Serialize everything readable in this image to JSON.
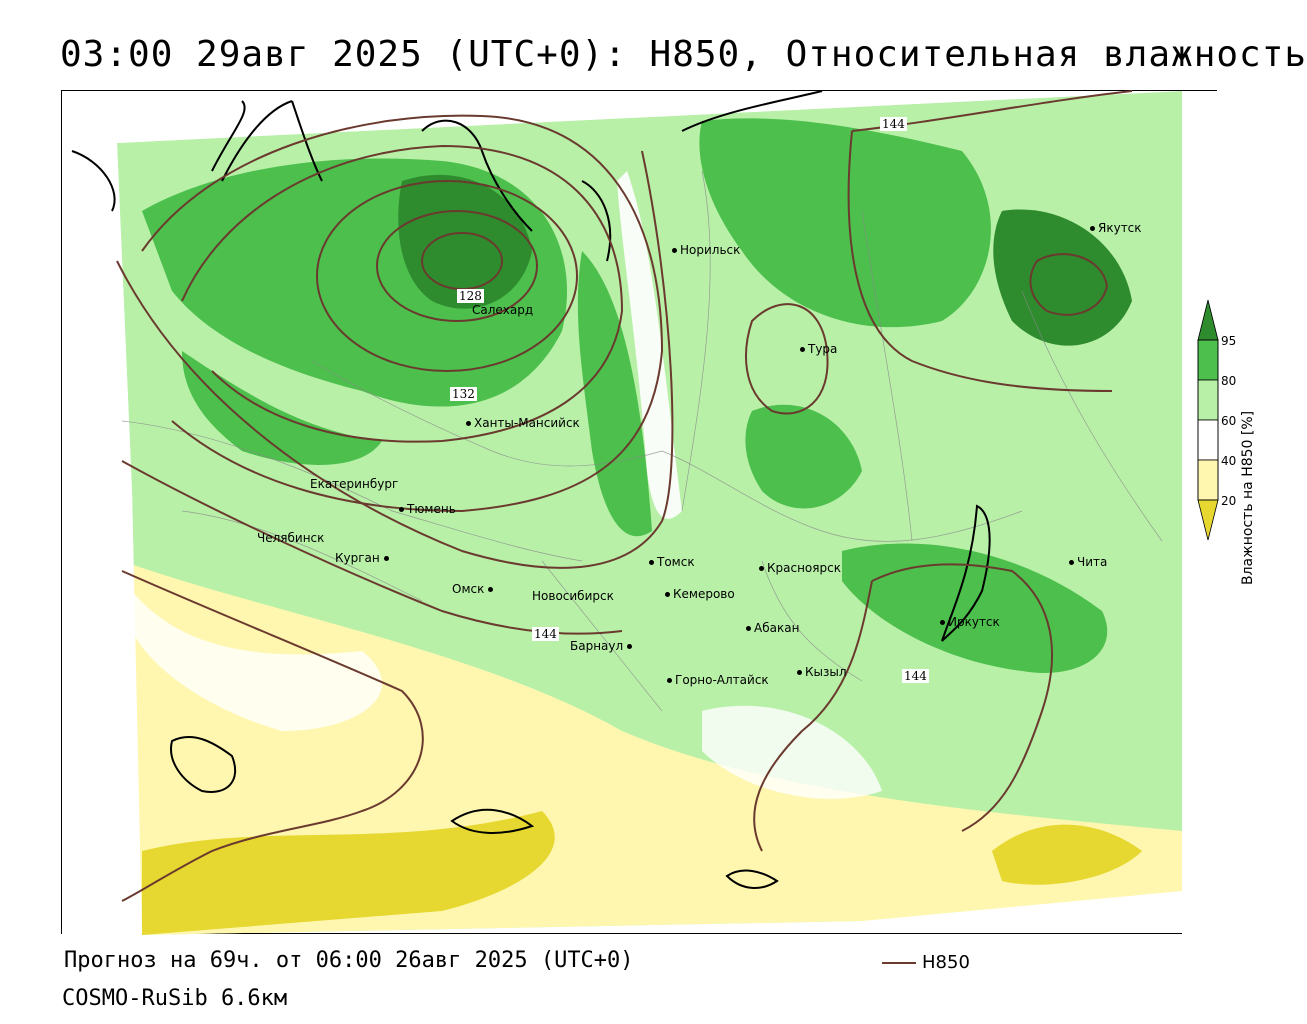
{
  "title": "03:00 29авг 2025 (UTC+0): H850, Относительная влажность",
  "forecast_line": "Прогноз на 69ч. от 06:00 26авг 2025 (UTC+0)",
  "model_line": "COSMO-RuSib 6.6км",
  "legend": {
    "line_label": "H850",
    "line_color": "#6b3a2f"
  },
  "colorbar": {
    "label": "Влажность на H850 [%]",
    "ticks": [
      "95",
      "80",
      "60",
      "40",
      "20"
    ],
    "colors": [
      "#2e8b2e",
      "#4cbf4c",
      "#b8f0a8",
      "#ffffff",
      "#fff7b0",
      "#e6d830"
    ]
  },
  "contour_labels": [
    "128",
    "132",
    "144",
    "144",
    "144"
  ],
  "cities": [
    {
      "name": "Норильск"
    },
    {
      "name": "Салехард"
    },
    {
      "name": "Якутск"
    },
    {
      "name": "Тура"
    },
    {
      "name": "Ханты-Мансийск"
    },
    {
      "name": "Екатеринбург"
    },
    {
      "name": "Тюмень"
    },
    {
      "name": "Челябинск"
    },
    {
      "name": "Курган"
    },
    {
      "name": "Омск"
    },
    {
      "name": "Новосибирск"
    },
    {
      "name": "Томск"
    },
    {
      "name": "Кемерово"
    },
    {
      "name": "Красноярск"
    },
    {
      "name": "Барнаул"
    },
    {
      "name": "Абакан"
    },
    {
      "name": "Горно-Алтайск"
    },
    {
      "name": "Кызыл"
    },
    {
      "name": "Иркутск"
    },
    {
      "name": "Чита"
    }
  ]
}
